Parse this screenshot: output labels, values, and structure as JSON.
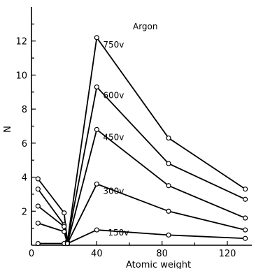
{
  "chart_data": {
    "type": "line",
    "title": "Argon",
    "xlabel": "Atomic weight",
    "ylabel": "N",
    "xlim": [
      0,
      135
    ],
    "ylim": [
      0,
      14
    ],
    "x_ticks": [
      0,
      40,
      80,
      120
    ],
    "y_ticks": [
      2,
      4,
      6,
      8,
      10,
      12
    ],
    "grid": false,
    "x": [
      4,
      20,
      22,
      40,
      84,
      131
    ],
    "series": [
      {
        "name": "750v",
        "values": [
          3.9,
          1.9,
          0.2,
          12.2,
          6.3,
          3.3
        ]
      },
      {
        "name": "600v",
        "values": [
          3.3,
          1.2,
          0.2,
          9.3,
          4.8,
          2.7
        ]
      },
      {
        "name": "450v",
        "values": [
          2.3,
          1.1,
          0.1,
          6.8,
          3.5,
          1.6
        ]
      },
      {
        "name": "300v",
        "values": [
          1.3,
          0.8,
          0.1,
          3.6,
          2.0,
          0.9
        ]
      },
      {
        "name": "150v",
        "values": [
          0.1,
          0.1,
          0.1,
          0.9,
          0.6,
          0.4
        ]
      }
    ]
  }
}
